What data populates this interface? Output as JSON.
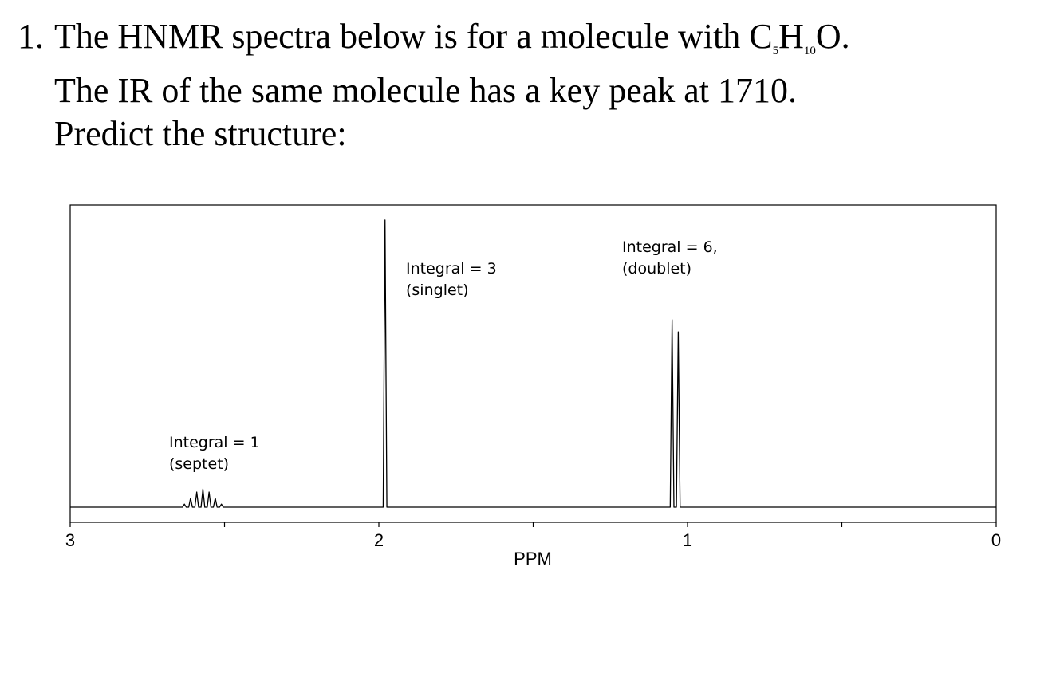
{
  "question": {
    "number": "1.",
    "line1": [
      "The HNMR spectra below is for a molecule with C",
      "5",
      "H",
      "10",
      "O."
    ],
    "line2": "The IR of the same molecule has a key peak at 1710.",
    "line3": "Predict the structure:"
  },
  "chart_data": {
    "type": "line",
    "xlabel": "PPM",
    "color": "#000000",
    "xlim": [
      3,
      0
    ],
    "xticks": [
      3,
      2,
      1,
      0
    ],
    "xminorticks": [
      2.5,
      1.5,
      0.5
    ],
    "ylim": [
      0,
      1
    ],
    "x": [
      3.0,
      2.636,
      2.63,
      2.624,
      2.616,
      2.61,
      2.604,
      2.596,
      2.59,
      2.584,
      2.576,
      2.57,
      2.564,
      2.556,
      2.55,
      2.544,
      2.536,
      2.53,
      2.524,
      2.516,
      2.51,
      2.504,
      1.986,
      1.98,
      1.974,
      1.056,
      1.05,
      1.044,
      1.036,
      1.03,
      1.024,
      0.0
    ],
    "values": [
      0,
      0,
      0.01,
      0,
      0,
      0.03,
      0,
      0,
      0.05,
      0,
      0,
      0.06,
      0,
      0,
      0.05,
      0,
      0,
      0.03,
      0,
      0,
      0.01,
      0,
      0,
      0.95,
      0,
      0,
      0.62,
      0,
      0,
      0.58,
      0,
      0
    ],
    "annotations": [
      [
        "Integral = 1",
        "(septet)"
      ],
      [
        "Integral = 3",
        "(singlet)"
      ],
      [
        "Integral = 6,",
        "(doublet)"
      ]
    ]
  }
}
